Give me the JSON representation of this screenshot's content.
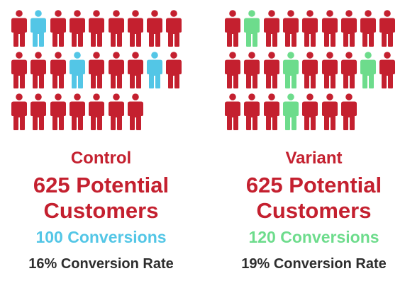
{
  "colors": {
    "people": "#c4202f",
    "control_highlight": "#53c6e6",
    "variant_highlight": "#6ddc8c",
    "rate_text": "#2e2e2e"
  },
  "people_icon": "person-icon",
  "control": {
    "name": "Control",
    "customers_line1": "625 Potential",
    "customers_line2": "Customers",
    "conversions": "100 Conversions",
    "rate": "16% Conversion Rate",
    "highlight_color": "#53c6e6",
    "icon_count": 25,
    "highlighted_icons": [
      2,
      13,
      17
    ]
  },
  "variant": {
    "name": "Variant",
    "customers_line1": "625 Potential",
    "customers_line2": "Customers",
    "conversions": "120 Conversions",
    "rate": "19% Conversion Rate",
    "highlight_color": "#6ddc8c",
    "icon_count": 25,
    "highlighted_icons": [
      2,
      13,
      17,
      22
    ]
  }
}
